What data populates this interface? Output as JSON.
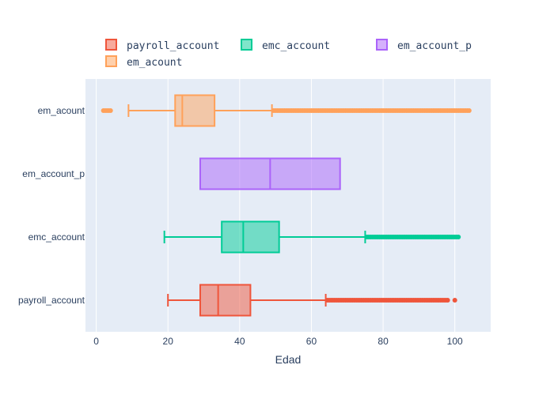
{
  "chart_data": {
    "type": "box",
    "orientation": "horizontal",
    "xlabel": "Edad",
    "ylabel": "",
    "xlim": [
      -3,
      110
    ],
    "xticks": [
      0,
      20,
      40,
      60,
      80,
      100
    ],
    "grid": true,
    "legend_position": "top",
    "plot_background": "#e5ecf6",
    "categories": [
      "payroll_account",
      "emc_account",
      "em_account_p",
      "em_acount"
    ],
    "series": [
      {
        "name": "payroll_account",
        "color": "#ef553b",
        "whisker_low": 20,
        "q1": 29,
        "median": 34,
        "q3": 43,
        "whisker_high": 64,
        "outliers_from": 64.5,
        "outliers_to": 98,
        "outliers_extra": [
          100
        ]
      },
      {
        "name": "emc_account",
        "color": "#00cc96",
        "whisker_low": 19,
        "q1": 35,
        "median": 41,
        "q3": 51,
        "whisker_high": 75,
        "outliers_from": 75.5,
        "outliers_to": 101,
        "outliers_extra": []
      },
      {
        "name": "em_account_p",
        "color": "#ab63fa",
        "whisker_low": 29,
        "q1": 29,
        "median": 48.5,
        "q3": 68,
        "whisker_high": 68,
        "outliers_from": null,
        "outliers_to": null,
        "outliers_extra": []
      },
      {
        "name": "em_acount",
        "color": "#ffa15a",
        "whisker_low": 9,
        "q1": 22,
        "median": 24,
        "q3": 33,
        "whisker_high": 49,
        "outliers_from": 49.5,
        "outliers_to": 104,
        "outliers_extra": [
          2,
          2.5,
          3,
          3.5,
          4
        ]
      }
    ],
    "legend": [
      "payroll_account",
      "emc_account",
      "em_account_p",
      "em_acount"
    ]
  }
}
